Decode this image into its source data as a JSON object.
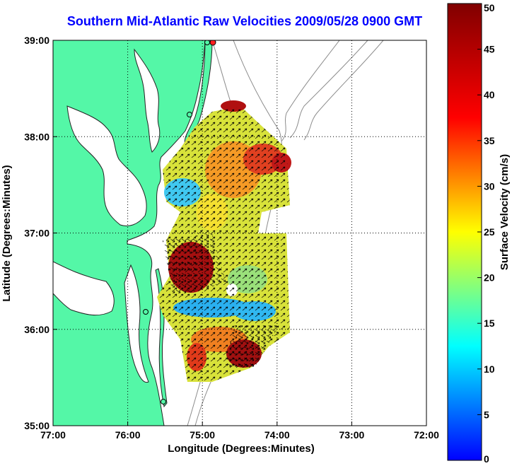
{
  "title": "Southern Mid-Atlantic Raw Velocities 2009/05/28 0900 GMT",
  "map": {
    "xlabel": "Longitude (Degrees:Minutes)",
    "ylabel": "Latitude (Degrees:Minutes)",
    "x_ticks": [
      "77:00",
      "76:00",
      "75:00",
      "74:00",
      "73:00",
      "72:00"
    ],
    "y_ticks": [
      "39:00",
      "38:00",
      "37:00",
      "36:00",
      "35:00"
    ],
    "lon_range": [
      -77,
      -72
    ],
    "lat_range": [
      35,
      39
    ],
    "land_color": "#54f7a7",
    "grid": true
  },
  "colorbar": {
    "label": "Surface Velocity (cm/s)",
    "min": 0,
    "max": 50,
    "ticks": [
      "0",
      "5",
      "10",
      "15",
      "20",
      "25",
      "30",
      "35",
      "40",
      "45",
      "50"
    ],
    "colormap": "jet"
  }
}
